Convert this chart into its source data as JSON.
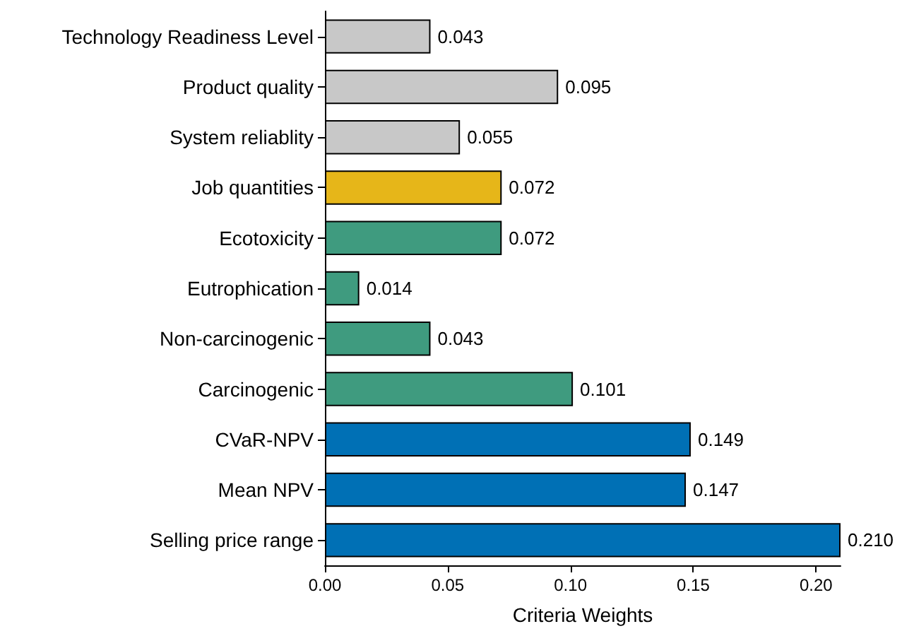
{
  "chart_data": {
    "type": "bar",
    "orientation": "horizontal",
    "xlabel": "Criteria Weights",
    "categories": [
      "Technology Readiness Level",
      "Product quality",
      "System reliablity",
      "Job quantities",
      "Ecotoxicity",
      "Eutrophication",
      "Non-carcinogenic",
      "Carcinogenic",
      "CVaR-NPV",
      "Mean NPV",
      "Selling price range"
    ],
    "values": [
      0.043,
      0.095,
      0.055,
      0.072,
      0.072,
      0.014,
      0.043,
      0.101,
      0.149,
      0.147,
      0.21
    ],
    "colors": [
      "#c8c8c8",
      "#c8c8c8",
      "#c8c8c8",
      "#e6b619",
      "#3f9b7f",
      "#3f9b7f",
      "#3f9b7f",
      "#3f9b7f",
      "#0070b5",
      "#0070b5",
      "#0070b5"
    ],
    "xlim": [
      0,
      0.21
    ],
    "xticks": [
      {
        "value": 0,
        "label": "0.00"
      },
      {
        "value": 0.05,
        "label": "0.05"
      },
      {
        "value": 0.1,
        "label": "0.10"
      },
      {
        "value": 0.15,
        "label": "0.15"
      },
      {
        "value": 0.2,
        "label": "0.20"
      }
    ],
    "value_labels": [
      "0.043",
      "0.095",
      "0.055",
      "0.072",
      "0.072",
      "0.014",
      "0.043",
      "0.101",
      "0.149",
      "0.147",
      "0.210"
    ],
    "grid": false
  }
}
